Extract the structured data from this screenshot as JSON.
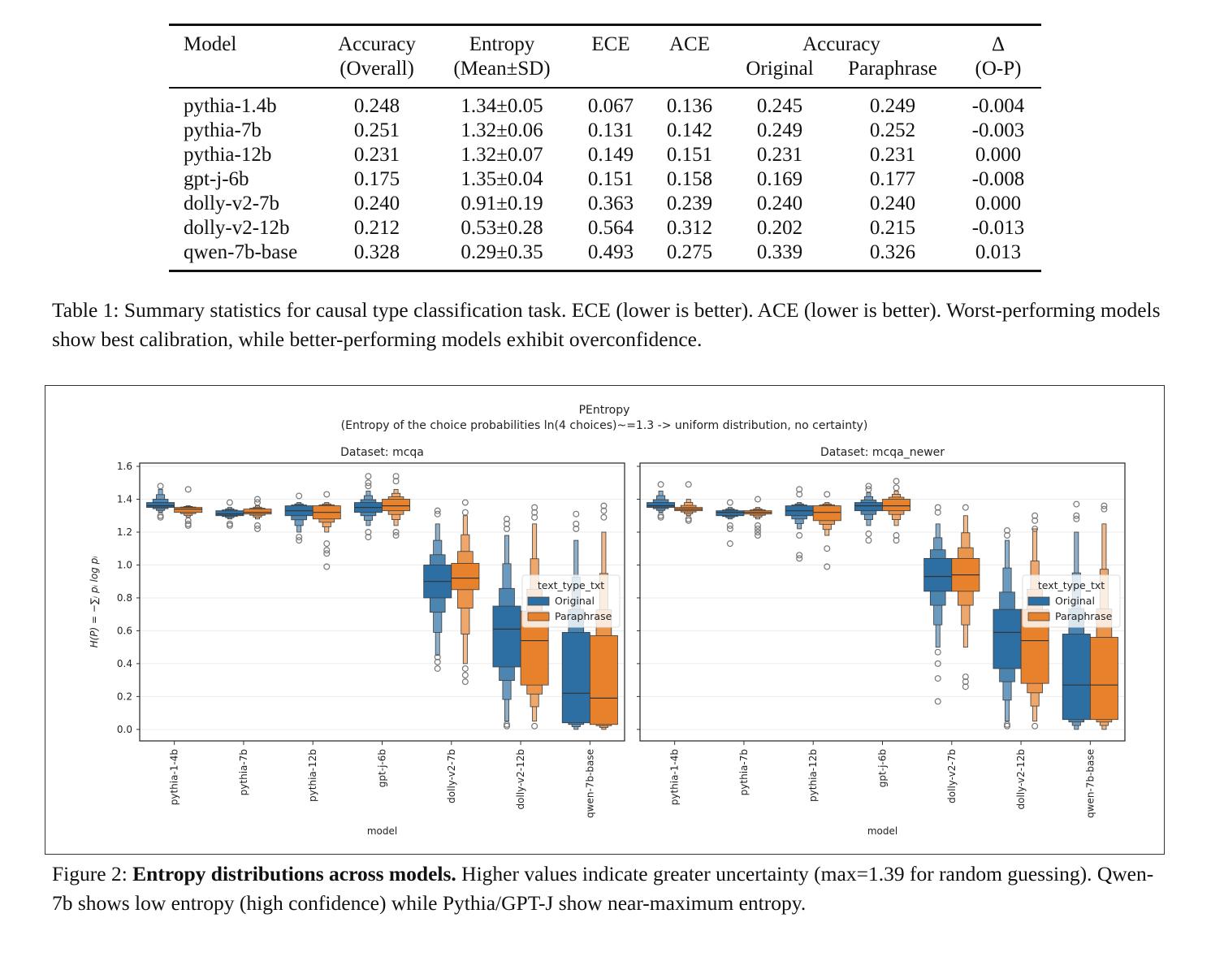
{
  "table": {
    "headers": {
      "model": "Model",
      "accuracy_overall": [
        "Accuracy",
        "(Overall)"
      ],
      "entropy": [
        "Entropy",
        "(Mean±SD)"
      ],
      "ece": "ECE",
      "ace": "ACE",
      "accuracy_group": "Accuracy",
      "original": "Original",
      "paraphrase": "Paraphrase",
      "delta": [
        "Δ",
        "(O-P)"
      ]
    },
    "rows": [
      [
        "pythia-1.4b",
        "0.248",
        "1.34±0.05",
        "0.067",
        "0.136",
        "0.245",
        "0.249",
        "-0.004"
      ],
      [
        "pythia-7b",
        "0.251",
        "1.32±0.06",
        "0.131",
        "0.142",
        "0.249",
        "0.252",
        "-0.003"
      ],
      [
        "pythia-12b",
        "0.231",
        "1.32±0.07",
        "0.149",
        "0.151",
        "0.231",
        "0.231",
        "0.000"
      ],
      [
        "gpt-j-6b",
        "0.175",
        "1.35±0.04",
        "0.151",
        "0.158",
        "0.169",
        "0.177",
        "-0.008"
      ],
      [
        "dolly-v2-7b",
        "0.240",
        "0.91±0.19",
        "0.363",
        "0.239",
        "0.240",
        "0.240",
        "0.000"
      ],
      [
        "dolly-v2-12b",
        "0.212",
        "0.53±0.28",
        "0.564",
        "0.312",
        "0.202",
        "0.215",
        "-0.013"
      ],
      [
        "qwen-7b-base",
        "0.328",
        "0.29±0.35",
        "0.493",
        "0.275",
        "0.339",
        "0.326",
        "0.013"
      ]
    ]
  },
  "table_caption": "Table 1:  Summary statistics for causal type classification task.  ECE (lower is better).  ACE (lower is better). Worst-performing models show best calibration, while better-performing models exhibit overconfidence.",
  "figure_caption": {
    "label": "Figure 2: ",
    "bold": "Entropy distributions across models.",
    "rest": " Higher values indicate greater uncertainty (max=1.39 for random guessing). Qwen-7b shows low entropy (high confidence) while Pythia/GPT-J show near-maximum entropy."
  },
  "chart_data": {
    "type": "boxen",
    "title": "PEntropy",
    "subtitle": "(Entropy of the choice probabilities ln(4 choices)~=1.3 -> uniform distribution, no certainty)",
    "ylabel": "H(P) = −∑ᵢ pᵢ log pᵢ",
    "xlabel": "model",
    "ylim": [
      -0.07,
      1.62
    ],
    "yticks": [
      "0.0",
      "0.2",
      "0.4",
      "0.6",
      "0.8",
      "1.0",
      "1.2",
      "1.4",
      "1.6"
    ],
    "grid": "horizontal",
    "categories": [
      "pythia-1-4b",
      "pythia-7b",
      "pythia-12b",
      "gpt-j-6b",
      "dolly-v2-7b",
      "dolly-v2-12b",
      "qwen-7b-base"
    ],
    "legend": {
      "title": "text_type_txt",
      "entries": [
        "Original",
        "Paraphrase"
      ],
      "position": "center-right"
    },
    "colors": {
      "Original": "#2e6fa3",
      "Paraphrase": "#e8812b"
    },
    "panels": [
      {
        "title": "Dataset: mcqa",
        "series": [
          {
            "name": "Original",
            "stats": [
              {
                "median": 1.36,
                "q1": 1.35,
                "q3": 1.38,
                "min": 1.32,
                "max": 1.46,
                "outliers": [
                  1.48,
                  1.29,
                  1.3
                ]
              },
              {
                "median": 1.31,
                "q1": 1.3,
                "q3": 1.33,
                "min": 1.28,
                "max": 1.35,
                "outliers": [
                  1.38,
                  1.25,
                  1.24
                ]
              },
              {
                "median": 1.33,
                "q1": 1.3,
                "q3": 1.36,
                "min": 1.2,
                "max": 1.38,
                "outliers": [
                  1.42,
                  1.17,
                  1.15
                ]
              },
              {
                "median": 1.35,
                "q1": 1.32,
                "q3": 1.38,
                "min": 1.24,
                "max": 1.45,
                "outliers": [
                  1.54,
                  1.5,
                  1.48,
                  1.2,
                  1.17
                ]
              },
              {
                "median": 0.9,
                "q1": 0.8,
                "q3": 1.0,
                "min": 0.45,
                "max": 1.25,
                "outliers": [
                  1.33,
                  1.31,
                  0.44,
                  0.41,
                  0.37
                ]
              },
              {
                "median": 0.61,
                "q1": 0.38,
                "q3": 0.75,
                "min": 0.05,
                "max": 1.18,
                "outliers": [
                  1.28,
                  1.25,
                  1.22,
                  0.03,
                  0.02
                ]
              },
              {
                "median": 0.22,
                "q1": 0.04,
                "q3": 0.59,
                "min": 0.0,
                "max": 1.15,
                "outliers": [
                  1.31,
                  1.25,
                  1.22
                ]
              }
            ]
          },
          {
            "name": "Paraphrase",
            "stats": [
              {
                "median": 1.34,
                "q1": 1.32,
                "q3": 1.35,
                "min": 1.29,
                "max": 1.36,
                "outliers": [
                  1.46,
                  1.27,
                  1.25,
                  1.24
                ]
              },
              {
                "median": 1.32,
                "q1": 1.31,
                "q3": 1.34,
                "min": 1.28,
                "max": 1.36,
                "outliers": [
                  1.4,
                  1.38,
                  1.24,
                  1.22
                ]
              },
              {
                "median": 1.32,
                "q1": 1.28,
                "q3": 1.36,
                "min": 1.2,
                "max": 1.38,
                "outliers": [
                  1.43,
                  1.13,
                  1.09,
                  1.07,
                  0.99
                ]
              },
              {
                "median": 1.36,
                "q1": 1.33,
                "q3": 1.4,
                "min": 1.24,
                "max": 1.46,
                "outliers": [
                  1.54,
                  1.51,
                  1.2,
                  1.18
                ]
              },
              {
                "median": 0.92,
                "q1": 0.85,
                "q3": 1.01,
                "min": 0.4,
                "max": 1.3,
                "outliers": [
                  1.38,
                  1.32,
                  0.37,
                  0.33,
                  0.29
                ]
              },
              {
                "median": 0.54,
                "q1": 0.27,
                "q3": 0.72,
                "min": 0.05,
                "max": 1.25,
                "outliers": [
                  1.35,
                  1.32,
                  1.29,
                  0.02
                ]
              },
              {
                "median": 0.19,
                "q1": 0.03,
                "q3": 0.57,
                "min": 0.0,
                "max": 1.2,
                "outliers": [
                  1.36,
                  1.33,
                  1.29
                ]
              }
            ]
          }
        ]
      },
      {
        "title": "Dataset: mcqa_newer",
        "series": [
          {
            "name": "Original",
            "stats": [
              {
                "median": 1.36,
                "q1": 1.35,
                "q3": 1.38,
                "min": 1.32,
                "max": 1.45,
                "outliers": [
                  1.49,
                  1.3,
                  1.29
                ]
              },
              {
                "median": 1.32,
                "q1": 1.3,
                "q3": 1.33,
                "min": 1.28,
                "max": 1.35,
                "outliers": [
                  1.38,
                  1.24,
                  1.22,
                  1.13
                ]
              },
              {
                "median": 1.33,
                "q1": 1.3,
                "q3": 1.36,
                "min": 1.22,
                "max": 1.38,
                "outliers": [
                  1.46,
                  1.43,
                  1.18,
                  1.06,
                  1.04
                ]
              },
              {
                "median": 1.36,
                "q1": 1.33,
                "q3": 1.38,
                "min": 1.24,
                "max": 1.44,
                "outliers": [
                  1.48,
                  1.46,
                  1.19,
                  1.15
                ]
              },
              {
                "median": 0.93,
                "q1": 0.84,
                "q3": 1.04,
                "min": 0.5,
                "max": 1.25,
                "outliers": [
                  1.35,
                  1.32,
                  0.47,
                  0.4,
                  0.31,
                  0.17
                ]
              },
              {
                "median": 0.59,
                "q1": 0.37,
                "q3": 0.73,
                "min": 0.05,
                "max": 1.15,
                "outliers": [
                  1.21,
                  1.18,
                  0.03,
                  0.02
                ]
              },
              {
                "median": 0.27,
                "q1": 0.06,
                "q3": 0.58,
                "min": 0.0,
                "max": 1.2,
                "outliers": [
                  1.37,
                  1.3,
                  1.28
                ]
              }
            ]
          },
          {
            "name": "Paraphrase",
            "stats": [
              {
                "median": 1.34,
                "q1": 1.33,
                "q3": 1.35,
                "min": 1.3,
                "max": 1.4,
                "outliers": [
                  1.49,
                  1.28,
                  1.27
                ]
              },
              {
                "median": 1.32,
                "q1": 1.31,
                "q3": 1.33,
                "min": 1.28,
                "max": 1.35,
                "outliers": [
                  1.4,
                  1.24,
                  1.22,
                  1.2,
                  1.18
                ]
              },
              {
                "median": 1.32,
                "q1": 1.27,
                "q3": 1.36,
                "min": 1.18,
                "max": 1.38,
                "outliers": [
                  1.43,
                  1.1,
                  0.99
                ]
              },
              {
                "median": 1.36,
                "q1": 1.33,
                "q3": 1.4,
                "min": 1.24,
                "max": 1.45,
                "outliers": [
                  1.51,
                  1.47,
                  1.18,
                  1.15
                ]
              },
              {
                "median": 0.94,
                "q1": 0.84,
                "q3": 1.04,
                "min": 0.5,
                "max": 1.3,
                "outliers": [
                  1.35,
                  0.32,
                  0.29,
                  0.26
                ]
              },
              {
                "median": 0.54,
                "q1": 0.28,
                "q3": 0.73,
                "min": 0.05,
                "max": 1.22,
                "outliers": [
                  1.3,
                  1.27,
                  1.22,
                  0.02
                ]
              },
              {
                "median": 0.27,
                "q1": 0.06,
                "q3": 0.56,
                "min": 0.0,
                "max": 1.25,
                "outliers": [
                  1.36,
                  1.34
                ]
              }
            ]
          }
        ]
      }
    ]
  }
}
